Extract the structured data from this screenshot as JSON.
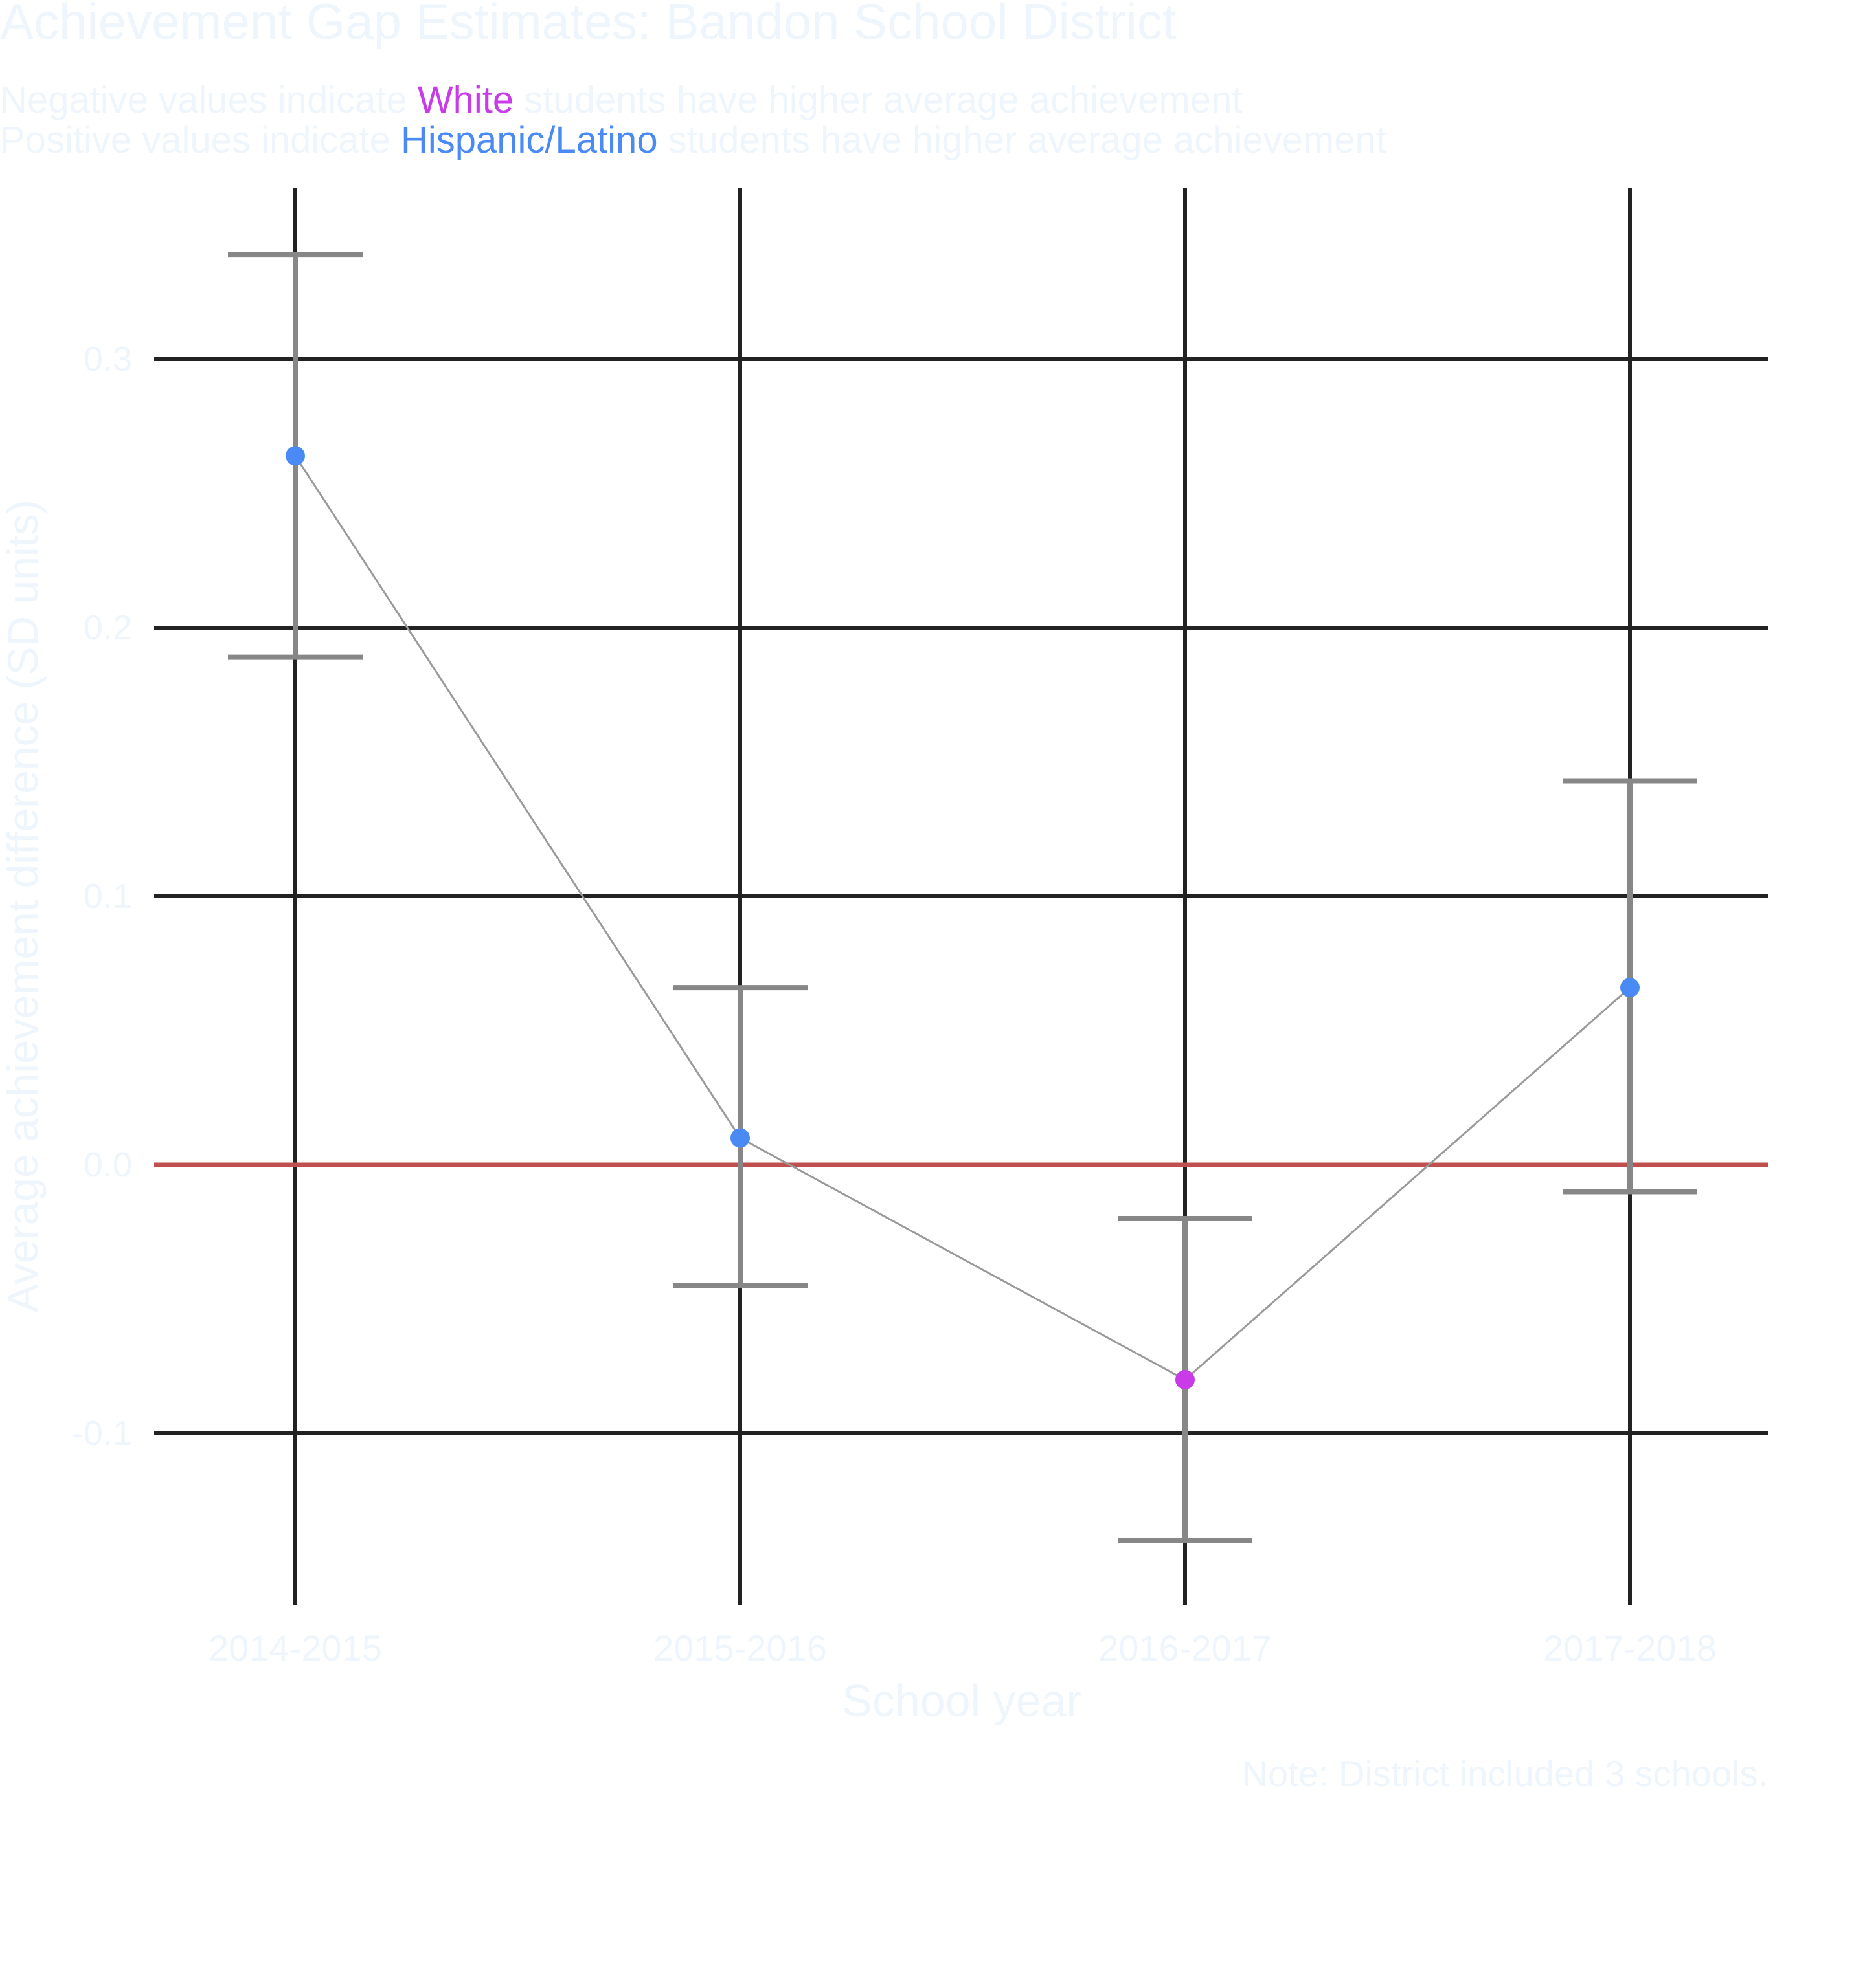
{
  "chart_data": {
    "type": "scatter",
    "title": "Achievement Gap Estimates: Bandon School District",
    "subtitle": {
      "line1": {
        "before": "Negative values indicate ",
        "highlight": "White",
        "after": " students have higher average achievement"
      },
      "line2": {
        "before": "Positive values indicate ",
        "highlight": "Hispanic/Latino",
        "after": " students have higher average achievement"
      }
    },
    "xlabel": "School year",
    "ylabel": "Average achievement difference (SD units)",
    "caption": "Note: District included 3 schools.",
    "categories": [
      "2014-2015",
      "2015-2016",
      "2016-2017",
      "2017-2018"
    ],
    "yticks": [
      -0.1,
      0.0,
      0.1,
      0.2,
      0.3
    ],
    "ytick_labels": [
      "-0.1",
      "0.0",
      "0.1",
      "0.2",
      "0.3"
    ],
    "ylim": [
      -0.161,
      0.364
    ],
    "reference_line": 0.0,
    "grid": true,
    "points": [
      {
        "x": "2014-2015",
        "estimate": 0.264,
        "lower": 0.189,
        "upper": 0.339,
        "favors": "Hispanic/Latino"
      },
      {
        "x": "2015-2016",
        "estimate": 0.01,
        "lower": -0.045,
        "upper": 0.066,
        "favors": "Hispanic/Latino"
      },
      {
        "x": "2016-2017",
        "estimate": -0.08,
        "lower": -0.14,
        "upper": -0.02,
        "favors": "White"
      },
      {
        "x": "2017-2018",
        "estimate": 0.066,
        "lower": -0.01,
        "upper": 0.143,
        "favors": "Hispanic/Latino"
      }
    ],
    "colors": {
      "White": "#c93ae8",
      "Hispanic/Latino": "#4a8af4",
      "text": "#eef5fd",
      "grid": "#222222",
      "reference": "#c0504d",
      "errorbar": "#878787",
      "connector": "#9a9a9a"
    }
  }
}
